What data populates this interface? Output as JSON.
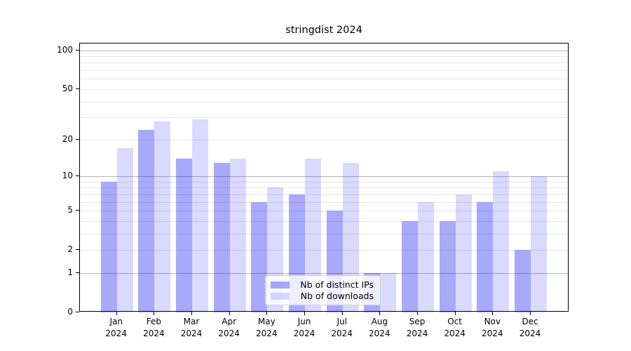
{
  "chart_data": {
    "type": "bar",
    "title": "stringdist 2024",
    "categories": [
      "Jan",
      "Feb",
      "Mar",
      "Apr",
      "May",
      "Jun",
      "Jul",
      "Aug",
      "Sep",
      "Oct",
      "Nov",
      "Dec"
    ],
    "category_year_label": "2024",
    "series": [
      {
        "name": "Nb of distinct IPs",
        "color": "rgba(10,10,245,0.35)",
        "values": [
          9,
          24,
          14,
          13,
          6,
          7,
          5,
          1,
          4,
          4,
          6,
          2
        ]
      },
      {
        "name": "Nb of downloads",
        "color": "rgba(10,10,245,0.15)",
        "values": [
          17,
          28,
          29,
          14,
          8,
          14,
          13,
          1,
          6,
          7,
          11,
          10
        ]
      }
    ],
    "y_scale": "log1p",
    "ylim": [
      0,
      111
    ],
    "y_ticks_labeled": [
      0,
      1,
      2,
      5,
      10,
      20,
      50,
      100
    ],
    "y_gridlines_major": [
      1,
      10,
      100
    ],
    "y_gridlines_minor": [
      2,
      3,
      4,
      5,
      6,
      7,
      8,
      9,
      20,
      30,
      40,
      50,
      60,
      70,
      80,
      90
    ],
    "xlabel": "",
    "ylabel": "",
    "grid": "horizontal",
    "legend_position": "lower center"
  },
  "colors": {
    "background": "#ffffff",
    "spine": "#000000",
    "grid_minor": "#e8e8e8",
    "grid_major": "#b4b4b4",
    "text": "#000000",
    "legend_border": "#cfcfcf"
  }
}
